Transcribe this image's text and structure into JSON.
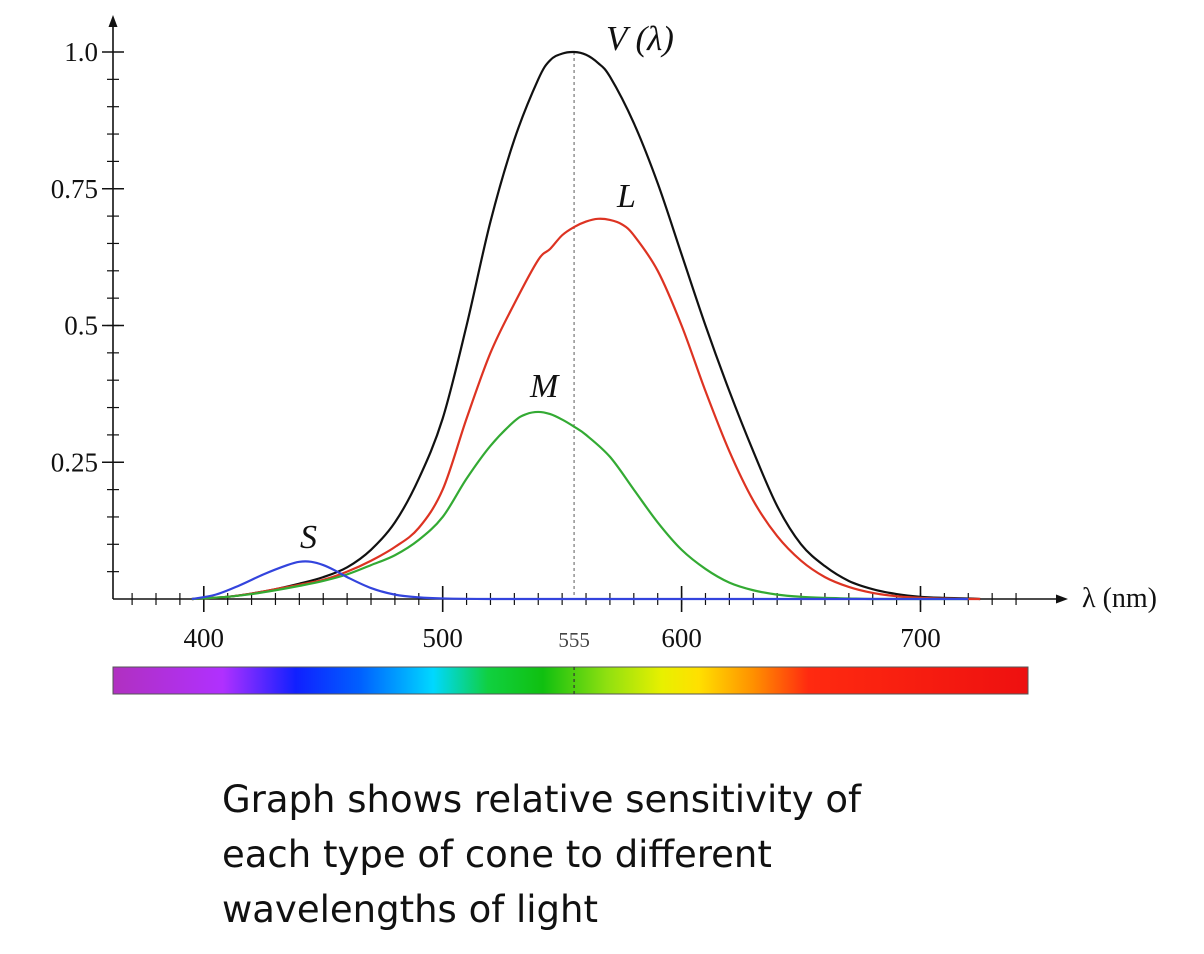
{
  "chart_data": {
    "type": "line",
    "xlabel": "λ (nm)",
    "xlim": [
      362,
      745
    ],
    "ylim": [
      0,
      1.0
    ],
    "x_ticks": [
      {
        "value": 400,
        "label": "400"
      },
      {
        "value": 500,
        "label": "500"
      },
      {
        "value": 555,
        "label": "555"
      },
      {
        "value": 600,
        "label": "600"
      },
      {
        "value": 700,
        "label": "700"
      }
    ],
    "y_ticks": [
      {
        "value": 0.25,
        "label": "0.25"
      },
      {
        "value": 0.5,
        "label": "0.5"
      },
      {
        "value": 0.75,
        "label": "0.75"
      },
      {
        "value": 1.0,
        "label": "1.0"
      }
    ],
    "reference_line": {
      "x": 555,
      "style": "dotted"
    },
    "series": [
      {
        "name": "V (λ)",
        "color": "#111111",
        "x": [
          395,
          410,
          420,
          430,
          440,
          450,
          460,
          470,
          480,
          490,
          500,
          510,
          520,
          530,
          540,
          545,
          550,
          555,
          560,
          565,
          570,
          580,
          590,
          600,
          610,
          620,
          630,
          640,
          650,
          660,
          670,
          680,
          690,
          700,
          710,
          720,
          725
        ],
        "y": [
          0.0,
          0.004,
          0.01,
          0.018,
          0.028,
          0.04,
          0.058,
          0.09,
          0.14,
          0.22,
          0.33,
          0.5,
          0.69,
          0.84,
          0.95,
          0.985,
          0.997,
          1.0,
          0.995,
          0.98,
          0.955,
          0.87,
          0.76,
          0.63,
          0.5,
          0.38,
          0.27,
          0.17,
          0.1,
          0.06,
          0.033,
          0.018,
          0.009,
          0.004,
          0.002,
          0.001,
          0.0
        ]
      },
      {
        "name": "L",
        "color": "#dd3322",
        "x": [
          395,
          410,
          420,
          430,
          440,
          450,
          460,
          470,
          480,
          490,
          500,
          510,
          520,
          530,
          540,
          545,
          550,
          555,
          560,
          565,
          570,
          575,
          580,
          590,
          600,
          610,
          620,
          630,
          640,
          650,
          660,
          670,
          680,
          690,
          700,
          710,
          720,
          725
        ],
        "y": [
          0.0,
          0.004,
          0.01,
          0.018,
          0.026,
          0.035,
          0.05,
          0.07,
          0.095,
          0.13,
          0.2,
          0.33,
          0.45,
          0.54,
          0.62,
          0.64,
          0.665,
          0.68,
          0.69,
          0.695,
          0.693,
          0.685,
          0.665,
          0.6,
          0.5,
          0.38,
          0.27,
          0.18,
          0.115,
          0.07,
          0.04,
          0.022,
          0.011,
          0.005,
          0.002,
          0.001,
          0.0,
          0.0
        ]
      },
      {
        "name": "M",
        "color": "#33aa33",
        "x": [
          395,
          410,
          420,
          430,
          440,
          450,
          460,
          470,
          480,
          490,
          500,
          510,
          520,
          530,
          535,
          540,
          545,
          550,
          555,
          560,
          570,
          580,
          590,
          600,
          610,
          620,
          630,
          640,
          650,
          660,
          670,
          680,
          700,
          720
        ],
        "y": [
          0.0,
          0.004,
          0.009,
          0.016,
          0.024,
          0.033,
          0.045,
          0.062,
          0.08,
          0.108,
          0.15,
          0.22,
          0.28,
          0.325,
          0.338,
          0.342,
          0.338,
          0.328,
          0.315,
          0.3,
          0.26,
          0.2,
          0.14,
          0.09,
          0.055,
          0.03,
          0.016,
          0.008,
          0.004,
          0.002,
          0.001,
          0.0,
          0.0,
          0.0
        ]
      },
      {
        "name": "S",
        "color": "#3344dd",
        "x": [
          395,
          405,
          415,
          425,
          435,
          440,
          445,
          450,
          455,
          460,
          470,
          480,
          490,
          500,
          520,
          560,
          620,
          720
        ],
        "y": [
          0.0,
          0.008,
          0.025,
          0.045,
          0.062,
          0.068,
          0.068,
          0.062,
          0.052,
          0.04,
          0.02,
          0.008,
          0.003,
          0.001,
          0.0,
          0.0,
          0.0,
          0.0
        ]
      }
    ]
  },
  "labels": {
    "v": "V (λ)",
    "l": "L",
    "m": "M",
    "s": "S"
  },
  "caption": {
    "line1": "Graph shows relative sensitivity of",
    "line2": "each type of cone to different",
    "line3": "wavelengths of light"
  }
}
